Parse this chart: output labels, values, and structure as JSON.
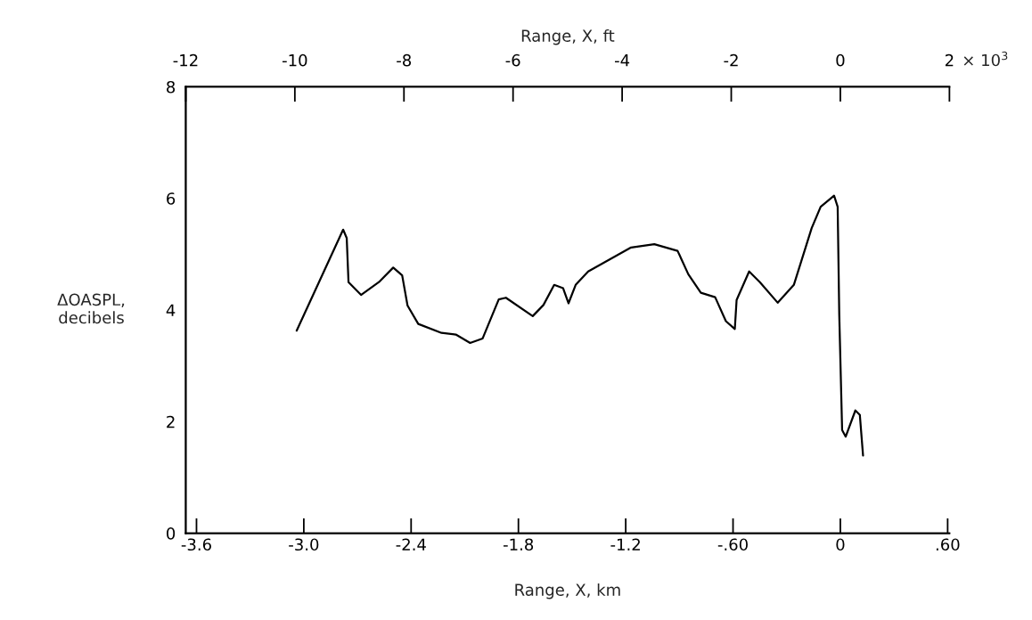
{
  "chart_data": {
    "type": "line",
    "xlabel": "Range, X, km",
    "x2label": "Range, X, ft",
    "ylabel": "ΔOASPL,\ndecibels",
    "xlim": [
      -3.66,
      0.61
    ],
    "x2lim": [
      -12,
      2
    ],
    "ylim": [
      0,
      8
    ],
    "xticks": [
      -3.6,
      {
        "value": -3.0,
        "label": "-3.0"
      },
      -2.4,
      -1.8,
      -1.2,
      {
        "value": -0.6,
        "label": "-.60"
      },
      0,
      {
        "value": 0.6,
        "label": ".60"
      }
    ],
    "x2ticks": [
      -12,
      -10,
      -8,
      -6,
      -4,
      -2,
      0,
      2
    ],
    "annotations": [
      "× 10$^{3}$"
    ],
    "yticks": [
      0,
      2,
      4,
      6,
      8
    ],
    "grid": false,
    "marker": "none",
    "line_style": "solid",
    "series": [
      {
        "color": "#000000",
        "x": [
          -3.04,
          -2.78,
          -2.76,
          -2.75,
          -2.68,
          -2.58,
          -2.5,
          -2.45,
          -2.42,
          -2.36,
          -2.23,
          -2.15,
          -2.07,
          -2.0,
          -1.91,
          -1.87,
          -1.72,
          -1.66,
          -1.6,
          -1.55,
          -1.52,
          -1.48,
          -1.41,
          -1.17,
          -1.04,
          -0.91,
          -0.85,
          -0.78,
          -0.7,
          -0.64,
          -0.59,
          -0.58,
          -0.51,
          -0.45,
          -0.35,
          -0.26,
          -0.16,
          -0.11,
          -0.035,
          -0.015,
          -0.006,
          0.01,
          0.03,
          0.084,
          0.109,
          0.127
        ],
        "values": [
          3.63,
          5.44,
          5.29,
          4.5,
          4.27,
          4.5,
          4.76,
          4.62,
          4.08,
          3.75,
          3.59,
          3.56,
          3.41,
          3.49,
          4.19,
          4.22,
          3.89,
          4.09,
          4.45,
          4.39,
          4.12,
          4.45,
          4.69,
          5.12,
          5.18,
          5.06,
          4.64,
          4.31,
          4.23,
          3.8,
          3.66,
          4.18,
          4.69,
          4.5,
          4.13,
          4.45,
          5.47,
          5.85,
          6.05,
          5.85,
          3.91,
          1.85,
          1.73,
          2.2,
          2.12,
          1.39
        ]
      }
    ]
  }
}
